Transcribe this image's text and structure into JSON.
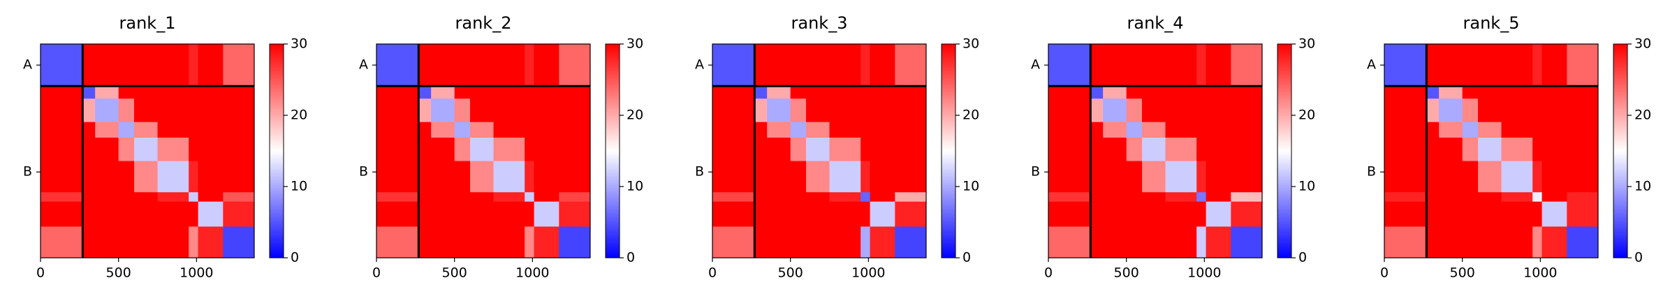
{
  "chart_data": [
    {
      "type": "heatmap",
      "title": "rank_1",
      "colormap": "bwr",
      "bins": [
        0,
        270,
        350,
        500,
        600,
        750,
        950,
        1010,
        1170,
        1370
      ],
      "values": [
        [
          5,
          30,
          30,
          30,
          30,
          30,
          28,
          30,
          24
        ],
        [
          30,
          5,
          20,
          30,
          30,
          30,
          30,
          30,
          30
        ],
        [
          30,
          20,
          10,
          22,
          30,
          30,
          30,
          30,
          30
        ],
        [
          30,
          30,
          22,
          10,
          22,
          30,
          30,
          30,
          30
        ],
        [
          30,
          30,
          30,
          22,
          12,
          22,
          30,
          30,
          30
        ],
        [
          30,
          30,
          30,
          30,
          22,
          12,
          28,
          30,
          30
        ],
        [
          27,
          30,
          30,
          30,
          30,
          28,
          12,
          30,
          25
        ],
        [
          30,
          30,
          30,
          30,
          30,
          30,
          30,
          12,
          28
        ],
        [
          24,
          30,
          30,
          30,
          30,
          30,
          22,
          28,
          4
        ]
      ],
      "xlim": [
        0,
        1370
      ],
      "ylim": [
        1370,
        0
      ],
      "xticks": [
        0,
        500,
        1000
      ],
      "yticks": [
        {
          "value": 135,
          "label": "A"
        },
        {
          "value": 820,
          "label": "B"
        }
      ],
      "boundaries": [
        270
      ],
      "clim": [
        0,
        30
      ],
      "cticks": [
        0,
        10,
        20,
        30
      ]
    },
    {
      "type": "heatmap",
      "title": "rank_2",
      "colormap": "bwr",
      "bins": [
        0,
        270,
        350,
        500,
        600,
        750,
        950,
        1010,
        1170,
        1370
      ],
      "values": [
        [
          5,
          30,
          30,
          30,
          30,
          30,
          28,
          30,
          24
        ],
        [
          30,
          5,
          20,
          30,
          30,
          30,
          30,
          30,
          30
        ],
        [
          30,
          20,
          10,
          22,
          30,
          30,
          30,
          30,
          30
        ],
        [
          30,
          30,
          22,
          10,
          22,
          30,
          30,
          30,
          30
        ],
        [
          30,
          30,
          30,
          22,
          12,
          22,
          30,
          30,
          30
        ],
        [
          30,
          30,
          30,
          30,
          22,
          12,
          28,
          30,
          30
        ],
        [
          27,
          30,
          30,
          30,
          30,
          28,
          12,
          30,
          26
        ],
        [
          30,
          30,
          30,
          30,
          30,
          30,
          30,
          12,
          28
        ],
        [
          24,
          30,
          30,
          30,
          30,
          30,
          22,
          28,
          4
        ]
      ],
      "xlim": [
        0,
        1370
      ],
      "ylim": [
        1370,
        0
      ],
      "xticks": [
        0,
        500,
        1000
      ],
      "yticks": [
        {
          "value": 135,
          "label": "A"
        },
        {
          "value": 820,
          "label": "B"
        }
      ],
      "boundaries": [
        270
      ],
      "clim": [
        0,
        30
      ],
      "cticks": [
        0,
        10,
        20,
        30
      ]
    },
    {
      "type": "heatmap",
      "title": "rank_3",
      "colormap": "bwr",
      "bins": [
        0,
        270,
        350,
        500,
        600,
        750,
        950,
        1010,
        1170,
        1370
      ],
      "values": [
        [
          5,
          30,
          30,
          30,
          30,
          30,
          28,
          30,
          24
        ],
        [
          30,
          5,
          20,
          30,
          30,
          30,
          30,
          30,
          30
        ],
        [
          30,
          20,
          10,
          22,
          30,
          30,
          30,
          30,
          30
        ],
        [
          30,
          30,
          22,
          10,
          22,
          30,
          30,
          30,
          30
        ],
        [
          30,
          30,
          30,
          22,
          12,
          22,
          30,
          30,
          30
        ],
        [
          30,
          30,
          30,
          30,
          22,
          12,
          28,
          30,
          30
        ],
        [
          26,
          30,
          30,
          30,
          30,
          28,
          6,
          30,
          20
        ],
        [
          30,
          30,
          30,
          30,
          30,
          30,
          30,
          12,
          28
        ],
        [
          24,
          30,
          30,
          30,
          30,
          30,
          10,
          28,
          4
        ]
      ],
      "xlim": [
        0,
        1370
      ],
      "ylim": [
        1370,
        0
      ],
      "xticks": [
        0,
        500,
        1000
      ],
      "yticks": [
        {
          "value": 135,
          "label": "A"
        },
        {
          "value": 820,
          "label": "B"
        }
      ],
      "boundaries": [
        270
      ],
      "clim": [
        0,
        30
      ],
      "cticks": [
        0,
        10,
        20,
        30
      ]
    },
    {
      "type": "heatmap",
      "title": "rank_4",
      "colormap": "bwr",
      "bins": [
        0,
        270,
        350,
        500,
        600,
        750,
        950,
        1010,
        1170,
        1370
      ],
      "values": [
        [
          5,
          30,
          30,
          30,
          30,
          30,
          28,
          30,
          24
        ],
        [
          30,
          5,
          20,
          30,
          30,
          30,
          30,
          30,
          30
        ],
        [
          30,
          20,
          10,
          22,
          30,
          30,
          30,
          30,
          30
        ],
        [
          30,
          30,
          22,
          10,
          22,
          30,
          30,
          30,
          30
        ],
        [
          30,
          30,
          30,
          22,
          12,
          22,
          30,
          30,
          30
        ],
        [
          30,
          30,
          30,
          30,
          22,
          12,
          28,
          30,
          30
        ],
        [
          27,
          30,
          30,
          30,
          30,
          28,
          7,
          30,
          19
        ],
        [
          30,
          30,
          30,
          30,
          30,
          30,
          30,
          12,
          28
        ],
        [
          24,
          30,
          30,
          30,
          30,
          30,
          12,
          28,
          4
        ]
      ],
      "xlim": [
        0,
        1370
      ],
      "ylim": [
        1370,
        0
      ],
      "xticks": [
        0,
        500,
        1000
      ],
      "yticks": [
        {
          "value": 135,
          "label": "A"
        },
        {
          "value": 820,
          "label": "B"
        }
      ],
      "boundaries": [
        270
      ],
      "clim": [
        0,
        30
      ],
      "cticks": [
        0,
        10,
        20,
        30
      ]
    },
    {
      "type": "heatmap",
      "title": "rank_5",
      "colormap": "bwr",
      "bins": [
        0,
        270,
        350,
        500,
        600,
        750,
        950,
        1010,
        1170,
        1370
      ],
      "values": [
        [
          5,
          30,
          30,
          30,
          30,
          30,
          28,
          30,
          24
        ],
        [
          30,
          5,
          20,
          30,
          30,
          30,
          30,
          30,
          30
        ],
        [
          30,
          20,
          10,
          22,
          30,
          30,
          30,
          30,
          30
        ],
        [
          30,
          30,
          22,
          10,
          22,
          30,
          30,
          30,
          30
        ],
        [
          30,
          30,
          30,
          22,
          12,
          22,
          30,
          30,
          30
        ],
        [
          30,
          30,
          30,
          30,
          22,
          12,
          28,
          30,
          30
        ],
        [
          28,
          30,
          30,
          30,
          30,
          28,
          14,
          30,
          28
        ],
        [
          30,
          30,
          30,
          30,
          30,
          30,
          30,
          12,
          28
        ],
        [
          24,
          30,
          30,
          30,
          30,
          30,
          22,
          28,
          4
        ]
      ],
      "xlim": [
        0,
        1370
      ],
      "ylim": [
        1370,
        0
      ],
      "xticks": [
        0,
        500,
        1000
      ],
      "yticks": [
        {
          "value": 135,
          "label": "A"
        },
        {
          "value": 820,
          "label": "B"
        }
      ],
      "boundaries": [
        270
      ],
      "clim": [
        0,
        30
      ],
      "cticks": [
        0,
        10,
        20,
        30
      ]
    }
  ]
}
